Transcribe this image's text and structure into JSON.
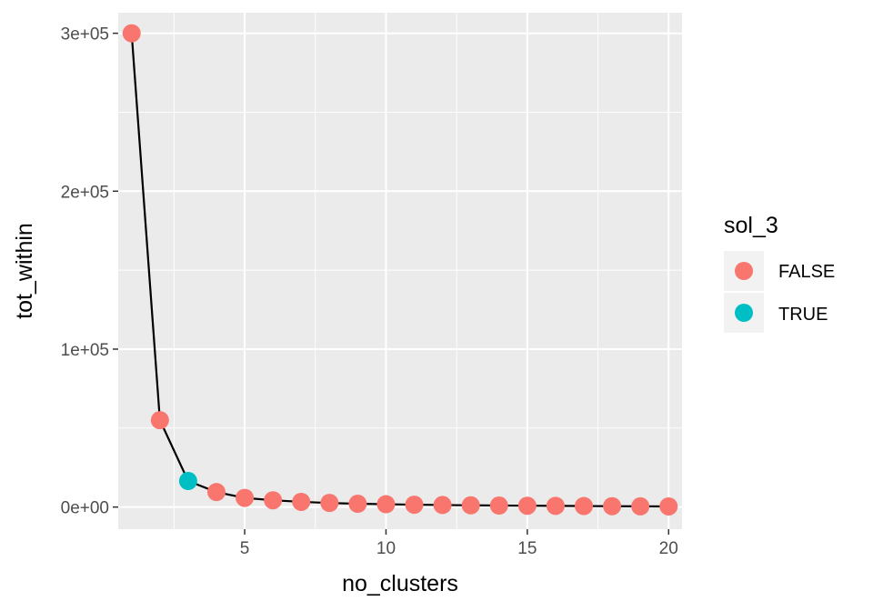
{
  "chart_data": {
    "type": "line",
    "title": "",
    "xlabel": "no_clusters",
    "ylabel": "tot_within",
    "xlim": [
      0.525,
      20.475
    ],
    "ylim": [
      -14000,
      313000
    ],
    "x_ticks": [
      5,
      10,
      15,
      20
    ],
    "x_tick_labels": [
      "5",
      "10",
      "15",
      "20"
    ],
    "y_ticks": [
      0,
      100000,
      200000,
      300000
    ],
    "y_tick_labels": [
      "0e+00",
      "1e+05",
      "2e+05",
      "3e+05"
    ],
    "grid": true,
    "legend": {
      "title": "sol_3",
      "position": "right",
      "entries": [
        {
          "label": "FALSE",
          "color": "#F8766D"
        },
        {
          "label": "TRUE",
          "color": "#00BFC4"
        }
      ]
    },
    "colors": {
      "panel_bg": "#EBEBEB",
      "grid": "#FFFFFF",
      "line": "#000000",
      "false": "#F8766D",
      "true": "#00BFC4"
    },
    "x": [
      1,
      2,
      3,
      4,
      5,
      6,
      7,
      8,
      9,
      10,
      11,
      12,
      13,
      14,
      15,
      16,
      17,
      18,
      19,
      20
    ],
    "y": [
      300000,
      55000,
      16500,
      9500,
      5800,
      4300,
      3300,
      2600,
      2100,
      1800,
      1500,
      1300,
      1100,
      950,
      850,
      750,
      650,
      550,
      450,
      400
    ],
    "sol_3": [
      false,
      false,
      true,
      false,
      false,
      false,
      false,
      false,
      false,
      false,
      false,
      false,
      false,
      false,
      false,
      false,
      false,
      false,
      false,
      false
    ]
  }
}
